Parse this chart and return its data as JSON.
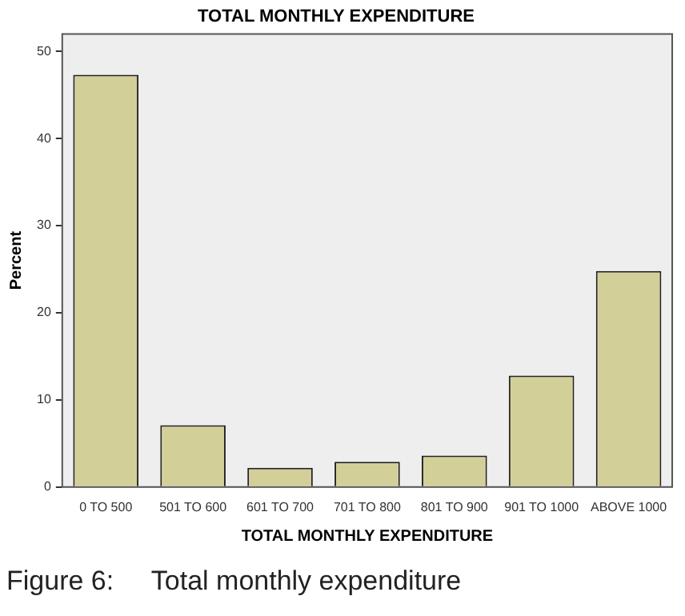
{
  "chart_data": {
    "type": "bar",
    "title": "TOTAL MONTHLY EXPENDITURE",
    "xlabel": "TOTAL MONTHLY EXPENDITURE",
    "ylabel": "Percent",
    "categories": [
      "0 TO 500",
      "501 TO 600",
      "601 TO 700",
      "701 TO 800",
      "801 TO 900",
      "901 TO 1000",
      "ABOVE 1000"
    ],
    "values": [
      47.3,
      7.1,
      2.2,
      2.9,
      3.6,
      12.8,
      24.8
    ],
    "color": "#d3cf98",
    "ylim": [
      0,
      52
    ],
    "yticks": [
      0,
      10,
      20,
      30,
      40,
      50
    ],
    "grid": false,
    "legend": false,
    "annotations": [
      "Figure 6:     Total monthly expenditure"
    ]
  }
}
